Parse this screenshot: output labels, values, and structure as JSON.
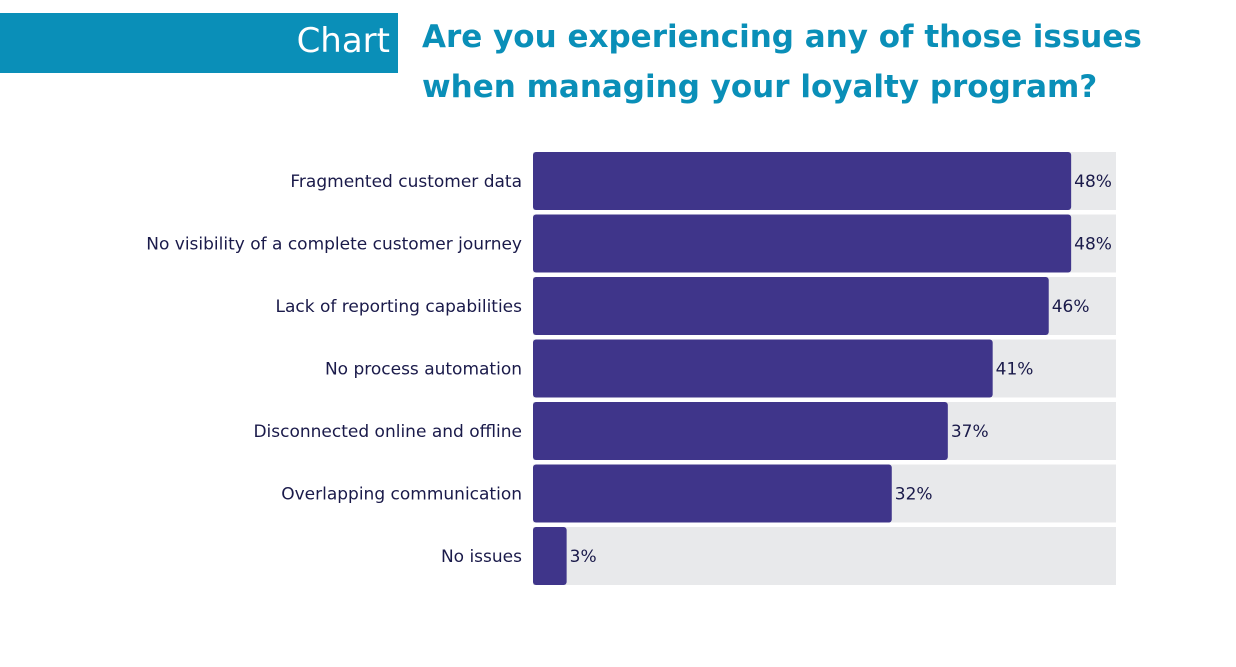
{
  "header": {
    "tag_label": "Chart",
    "title_line1": "Are you experiencing any of those issues",
    "title_line2": "when managing your loyalty program?"
  },
  "colors": {
    "bar": "#3f358a",
    "track": "#e8e9eb",
    "accent": "#0a8fb8",
    "label": "#1a1a4a"
  },
  "chart_data": {
    "type": "bar",
    "orientation": "horizontal",
    "title": "Are you experiencing any of those issues when managing your loyalty program?",
    "categories": [
      "Fragmented customer data",
      "No visibility of a complete customer journey",
      "Lack of reporting capabilities",
      "No process automation",
      "Disconnected online and offline",
      "Overlapping communication",
      "No issues"
    ],
    "values": [
      48,
      48,
      46,
      41,
      37,
      32,
      3
    ],
    "value_labels": [
      "48%",
      "48%",
      "46%",
      "41%",
      "37%",
      "32%",
      "3%"
    ],
    "xlim": [
      0,
      52
    ],
    "grid": false,
    "legend": "none"
  }
}
